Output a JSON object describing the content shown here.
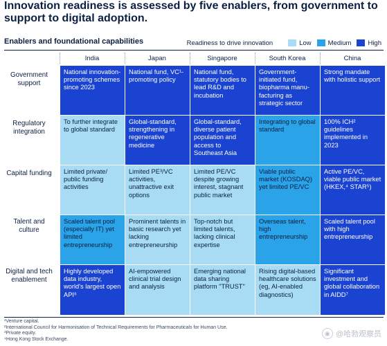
{
  "title": "Innovation readiness is assessed by five enablers, from government to support to digital adoption.",
  "subtitle": "Enablers and foundational capabilities",
  "legend": {
    "title": "Readiness to drive innovation",
    "items": [
      {
        "label": "Low",
        "color": "#a8dcf5"
      },
      {
        "label": "Medium",
        "color": "#2aa3e8"
      },
      {
        "label": "High",
        "color": "#1a43d1"
      }
    ]
  },
  "columns": [
    "India",
    "Japan",
    "Singapore",
    "South Korea",
    "China"
  ],
  "rows": [
    {
      "label": "Government support",
      "cells": [
        {
          "level": "high",
          "text": "National innovation-promoting schemes since 2023"
        },
        {
          "level": "high",
          "text": "National fund, VC¹-promoting policy"
        },
        {
          "level": "high",
          "text": "National fund, statutory bodies to lead R&D and incubation"
        },
        {
          "level": "high",
          "text": "Government-initiated fund, biopharma manu-facturing as strategic sector"
        },
        {
          "level": "high",
          "text": "Strong mandate with holistic support"
        }
      ]
    },
    {
      "label": "Regulatory integration",
      "cells": [
        {
          "level": "low",
          "text": "To further integrate to global standard"
        },
        {
          "level": "high",
          "text": "Global-standard, strengthening in regenerative medicine"
        },
        {
          "level": "high",
          "text": "Global-standard, diverse patient population and access to Southeast Asia"
        },
        {
          "level": "medium",
          "text": "Integrating to global standard"
        },
        {
          "level": "high",
          "text": "100% ICH² guidelines implemented in 2023"
        }
      ]
    },
    {
      "label": "Capital funding",
      "cells": [
        {
          "level": "low",
          "text": "Limited private/ public funding activities"
        },
        {
          "level": "low",
          "text": "Limited PE³/VC activities, unattractive exit options"
        },
        {
          "level": "low",
          "text": "Limited PE/VC despite growing interest, stagnant public market"
        },
        {
          "level": "medium",
          "text": "Viable public market (KOSDAQ) yet limited PE/VC"
        },
        {
          "level": "high",
          "text": "Active PE/VC, viable public market (HKEX,⁴ STAR⁵)"
        }
      ]
    },
    {
      "label": "Talent and culture",
      "cells": [
        {
          "level": "medium",
          "text": "Scaled talent pool (especially IT) yet limited entrepreneurship"
        },
        {
          "level": "low",
          "text": "Prominent talents in basic research yet lacking entrepreneurship"
        },
        {
          "level": "low",
          "text": "Top-notch but limited talents, lacking clinical expertise"
        },
        {
          "level": "medium",
          "text": "Overseas talent, high entrepreneurship"
        },
        {
          "level": "high",
          "text": "Scaled talent pool with high entrepreneurship"
        }
      ]
    },
    {
      "label": "Digital and tech enablement",
      "cells": [
        {
          "level": "high",
          "text": "Highly developed data industry, world's largest open API⁶"
        },
        {
          "level": "low",
          "text": "AI-empowered clinical trial design and analysis"
        },
        {
          "level": "low",
          "text": "Emerging national data sharing platform \"TRUST\""
        },
        {
          "level": "low",
          "text": "Rising digital-based healthcare solutions (eg, AI-enabled diagnostics)"
        },
        {
          "level": "high",
          "text": "Significant investment and global collaboration in AIDD⁷"
        }
      ]
    }
  ],
  "footnotes": [
    "¹Venture capital.",
    "²International Council for Harmonisation of Technical Requirements for Pharmaceuticals for Human Use.",
    "³Private equity.",
    "⁴Hong Kong Stock Exchange."
  ],
  "watermark": "@哈勃观察员"
}
